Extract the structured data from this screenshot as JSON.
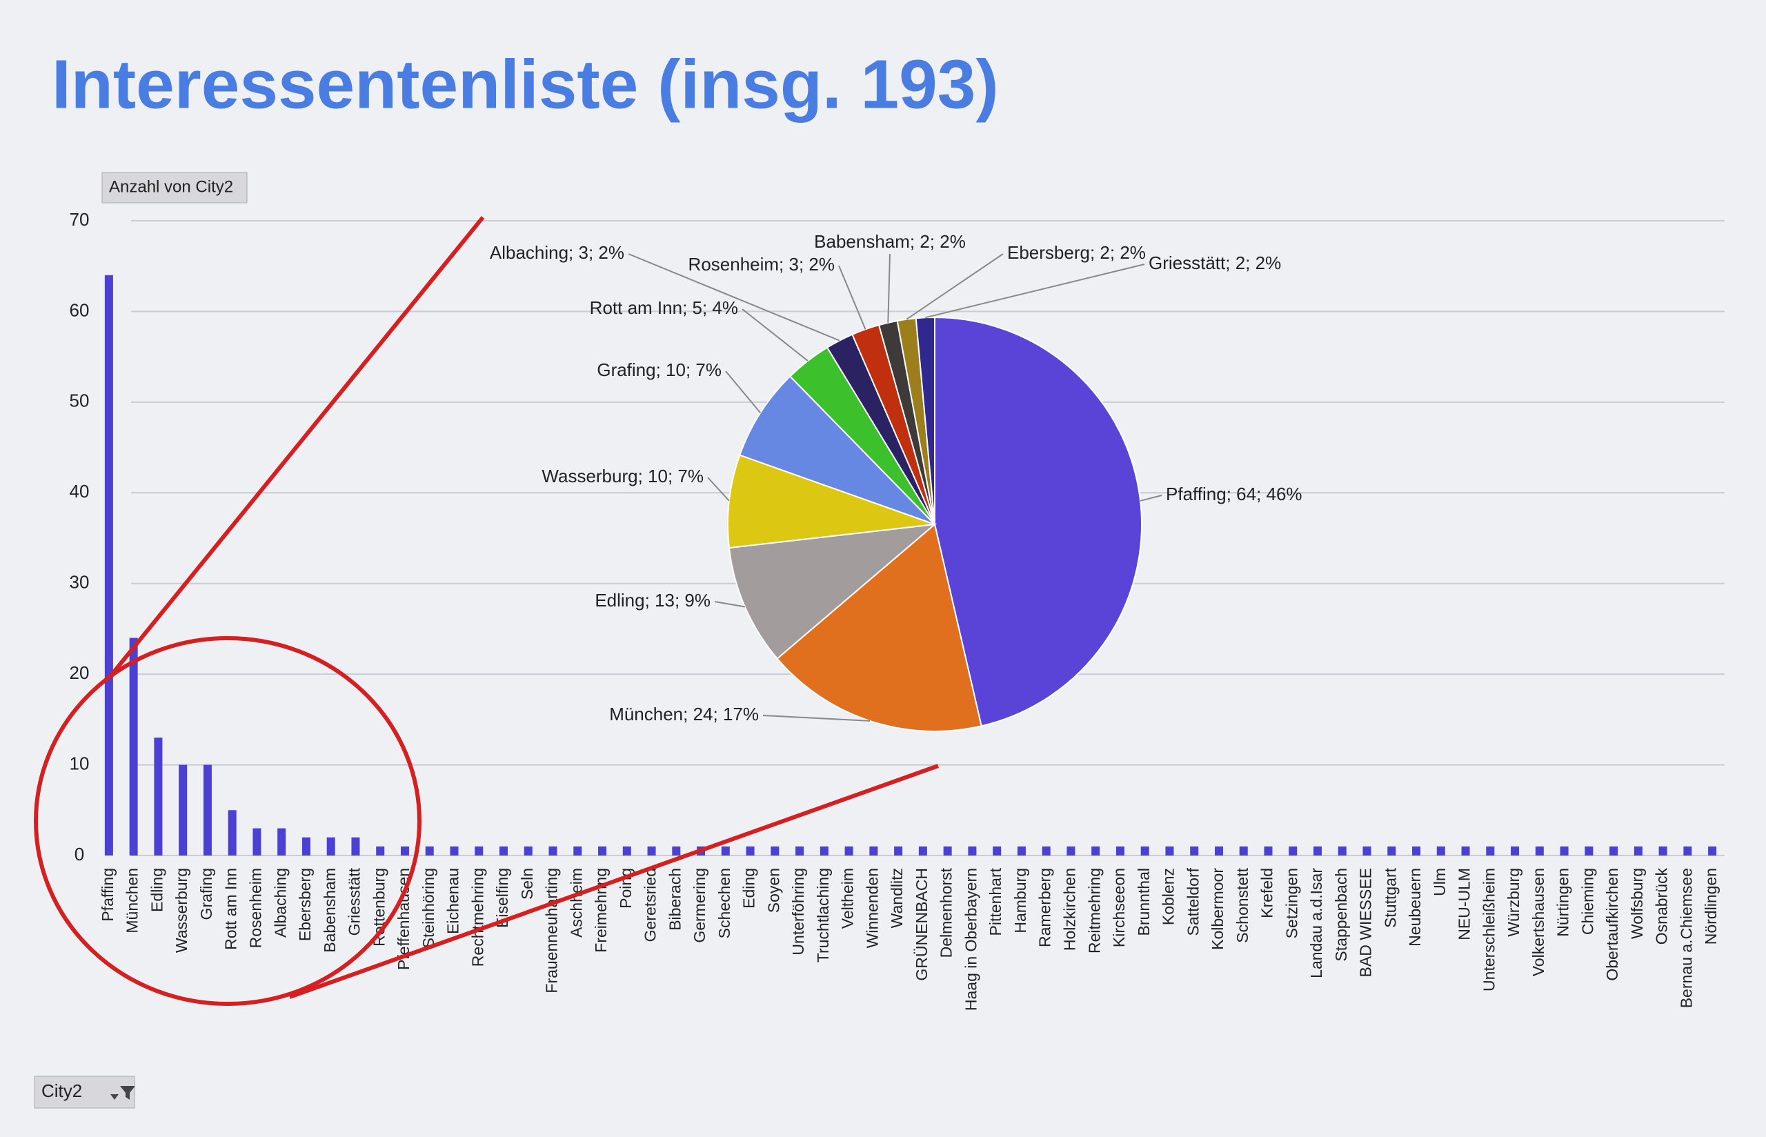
{
  "title": "Interessentenliste (insg. 193)",
  "filter_button": "City2",
  "chart_data": [
    {
      "type": "bar",
      "y_label": "Anzahl von City2",
      "color": "#4b3fd4",
      "ylim": [
        0,
        70
      ],
      "yticks": [
        0,
        10,
        20,
        30,
        40,
        50,
        60,
        70
      ],
      "grid": true,
      "categories": [
        "Pfaffing",
        "München",
        "Edling",
        "Wasserburg",
        "Grafing",
        "Rott am Inn",
        "Rosenheim",
        "Albaching",
        "Ebersberg",
        "Babensham",
        "Griesstätt",
        "Rottenburg",
        "Pfeffenhausen",
        "Steinhöring",
        "Eichenau",
        "Rechtmehring",
        "Eiselfing",
        "Seln",
        "Frauenneuharting",
        "Aschheim",
        "Freimehring",
        "Poing",
        "Geretsried",
        "Biberach",
        "Germering",
        "Schechen",
        "Eding",
        "Soyen",
        "Unterföhring",
        "Truchtlaching",
        "Veltheim",
        "Winnenden",
        "Wandlitz",
        "GRÜNENBACH",
        "Delmenhorst",
        "Haag in Oberbayern",
        "Pittenhart",
        "Hamburg",
        "Ramerberg",
        "Holzkirchen",
        "Reitmehring",
        "Kirchseeon",
        "Brunnthal",
        "Koblenz",
        "Satteldorf",
        "Kolbermoor",
        "Schonstett",
        "Krefeld",
        "Setzingen",
        "Landau a.d.Isar",
        "Stappenbach",
        "BAD WIESSEE",
        "Stuttgart",
        "Neubeuern",
        "Ulm",
        "NEU-ULM",
        "Unterschleißheim",
        "Würzburg",
        "Volkertshausen",
        "Nürtingen",
        "Chieming",
        "Obertaufkirchen",
        "Wolfsburg",
        "Osnabrück",
        "Bernau a.Chiemsee",
        "Nördlingen"
      ],
      "values": [
        64,
        24,
        13,
        10,
        10,
        5,
        3,
        3,
        2,
        2,
        2,
        1,
        1,
        1,
        1,
        1,
        1,
        1,
        1,
        1,
        1,
        1,
        1,
        1,
        1,
        1,
        1,
        1,
        1,
        1,
        1,
        1,
        1,
        1,
        1,
        1,
        1,
        1,
        1,
        1,
        1,
        1,
        1,
        1,
        1,
        1,
        1,
        1,
        1,
        1,
        1,
        1,
        1,
        1,
        1,
        1,
        1,
        1,
        1,
        1,
        1,
        1,
        1,
        1,
        1,
        1
      ]
    },
    {
      "type": "pie",
      "categories": [
        "Pfaffing",
        "München",
        "Edling",
        "Wasserburg",
        "Grafing",
        "Rott am Inn",
        "Albaching",
        "Rosenheim",
        "Babensham",
        "Ebersberg",
        "Griesstätt"
      ],
      "values": [
        64,
        24,
        13,
        10,
        10,
        5,
        3,
        3,
        2,
        2,
        2
      ],
      "value_labels": [
        "Pfaffing; 64; 46%",
        "München; 24; 17%",
        "Edling; 13; 9%",
        "Wasserburg; 10; 7%",
        "Grafing; 10; 7%",
        "Rott am Inn; 5; 4%",
        "Albaching; 3; 2%",
        "Rosenheim; 3; 2%",
        "Babensham; 2; 2%",
        "Ebersberg; 2; 2%",
        "Griesstätt; 2; 2%"
      ],
      "colors": [
        "#5a44d8",
        "#e0701e",
        "#a39c9c",
        "#dcc812",
        "#6688e2",
        "#3cc02c",
        "#2a2262",
        "#c0300e",
        "#3e3a3a",
        "#9c7e1c",
        "#30288e"
      ]
    }
  ]
}
